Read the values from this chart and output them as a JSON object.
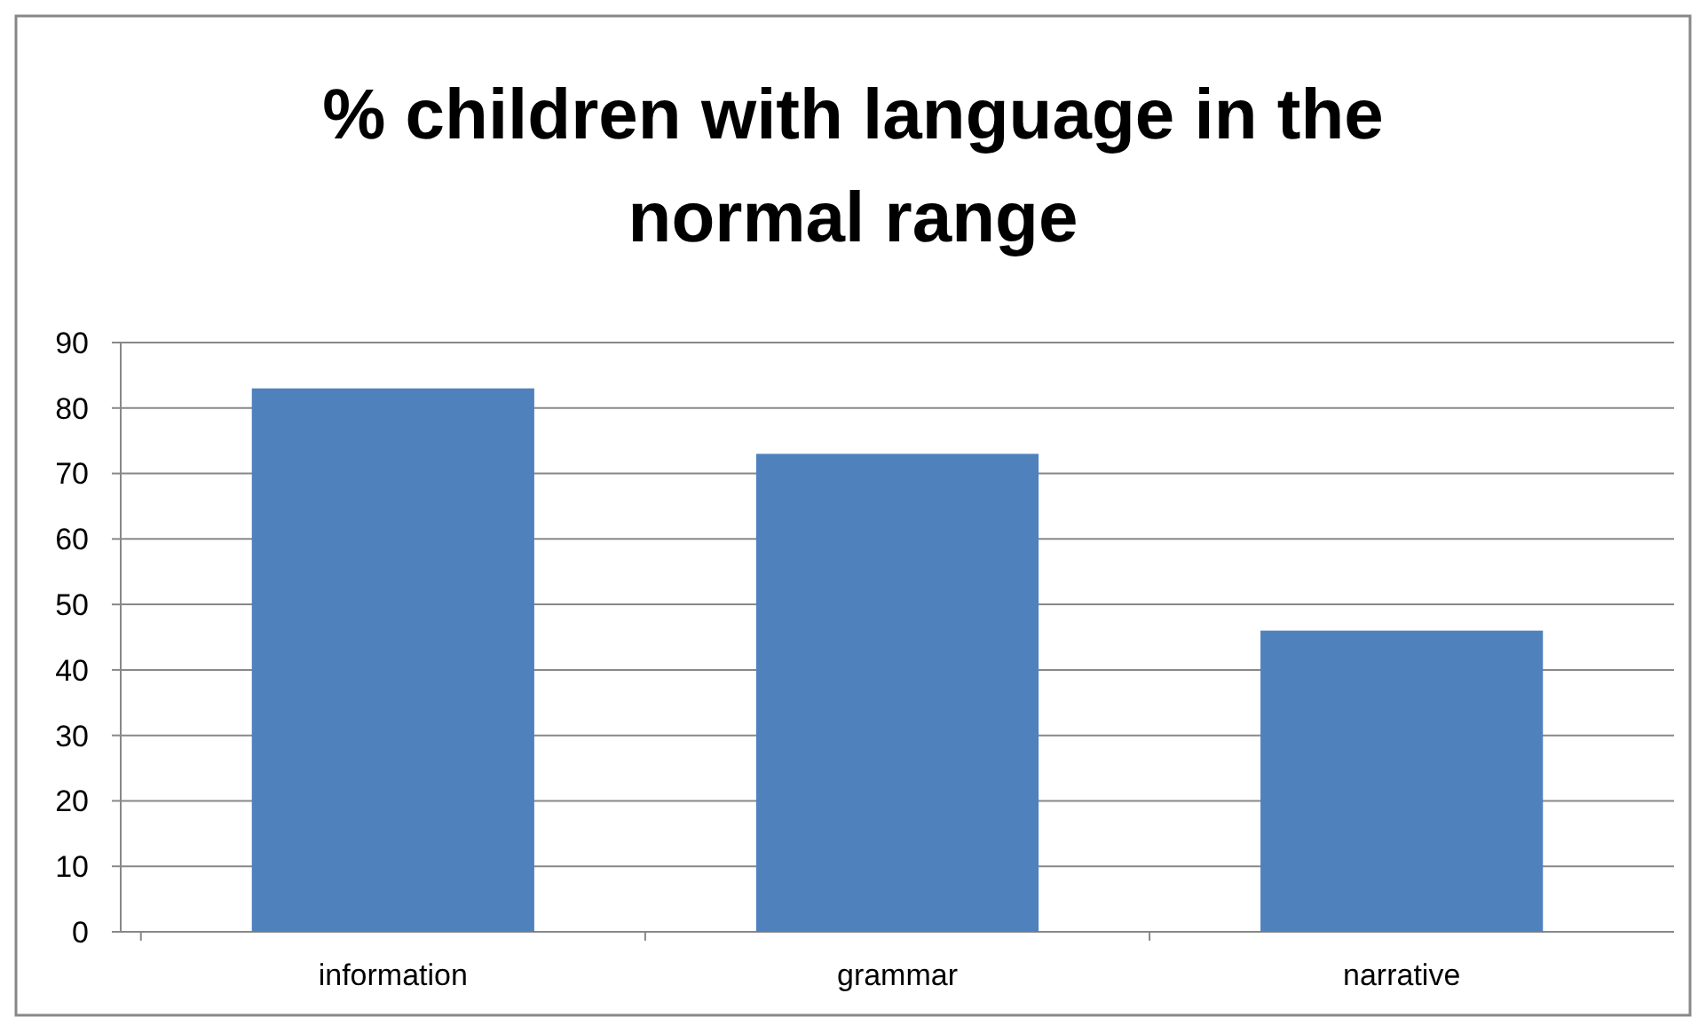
{
  "chart_data": {
    "type": "bar",
    "title": "% children with language in the normal range",
    "categories": [
      "information",
      "grammar",
      "narrative"
    ],
    "values": [
      83,
      73,
      46
    ],
    "color": "#4f81bd",
    "ylim": [
      0,
      90
    ],
    "yticks": [
      0,
      10,
      20,
      30,
      40,
      50,
      60,
      70,
      80,
      90
    ],
    "grid": "y"
  }
}
